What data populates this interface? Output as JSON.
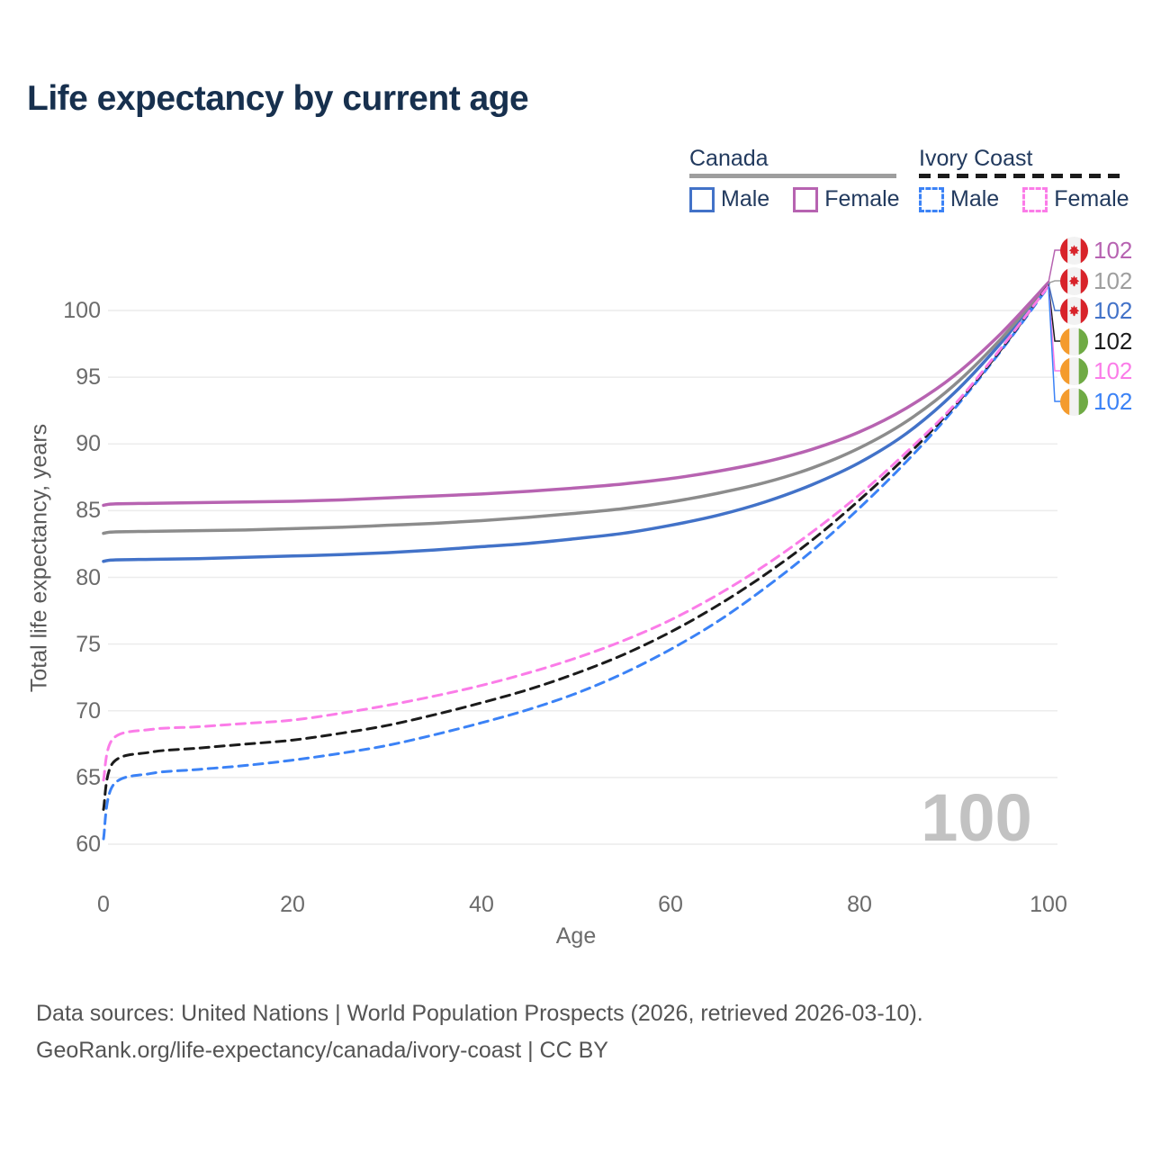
{
  "title": "Life expectancy by current age",
  "watermark": "100",
  "colors": {
    "title": "#17304e",
    "legend_text": "#223a5e",
    "axis_text": "#6b6b6b",
    "grid": "#ececec",
    "footer_text": "#545454",
    "watermark": "#c2c2c2",
    "canada_flag_red": "#d8232a",
    "ivory_flag_orange": "#f49b2d",
    "ivory_flag_green": "#6faa44"
  },
  "legend": {
    "groups": [
      {
        "label": "Canada",
        "line_style": "solid",
        "underline_color": "#9e9e9e",
        "items": [
          {
            "label": "Male",
            "color": "#4272c8"
          },
          {
            "label": "Female",
            "color": "#b763b1"
          }
        ]
      },
      {
        "label": "Ivory Coast",
        "line_style": "dashed",
        "underline_color": "#1b1b1b",
        "items": [
          {
            "label": "Male",
            "color": "#3b82f6"
          },
          {
            "label": "Female",
            "color": "#fb7ce8"
          }
        ]
      }
    ]
  },
  "end_labels": [
    {
      "value": "102",
      "flag": "canada",
      "series": "canada-female",
      "color": "#b763b1"
    },
    {
      "value": "102",
      "flag": "canada",
      "series": "canada-both",
      "color": "#9e9e9e"
    },
    {
      "value": "102",
      "flag": "canada",
      "series": "canada-male",
      "color": "#4272c8"
    },
    {
      "value": "102",
      "flag": "ivory-coast",
      "series": "ivory-both",
      "color": "#1b1b1b"
    },
    {
      "value": "102",
      "flag": "ivory-coast",
      "series": "ivory-female",
      "color": "#fb7ce8"
    },
    {
      "value": "102",
      "flag": "ivory-coast",
      "series": "ivory-male",
      "color": "#3b82f6"
    }
  ],
  "chart_data": {
    "type": "line",
    "title": "Life expectancy by current age",
    "xlabel": "Age",
    "ylabel": "Total life expectancy, years",
    "xlim": [
      0,
      100
    ],
    "ylim": [
      60,
      102.5
    ],
    "xticks": [
      0,
      20,
      40,
      60,
      80,
      100
    ],
    "yticks": [
      60,
      65,
      70,
      75,
      80,
      85,
      90,
      95,
      100
    ],
    "grid": "horizontal",
    "legend_position": "top-right",
    "x": [
      0,
      1,
      5,
      10,
      15,
      20,
      25,
      30,
      35,
      40,
      45,
      50,
      55,
      60,
      65,
      70,
      75,
      80,
      85,
      90,
      95,
      100
    ],
    "series": [
      {
        "id": "canada-male",
        "name": "Canada Male",
        "country": "Canada",
        "sex": "Male",
        "color": "#4272c8",
        "dash": null,
        "width": 3.5,
        "values": [
          81.2,
          81.3,
          81.35,
          81.4,
          81.5,
          81.6,
          81.7,
          81.85,
          82.05,
          82.3,
          82.55,
          82.9,
          83.3,
          83.9,
          84.65,
          85.65,
          86.95,
          88.6,
          90.8,
          93.8,
          97.6,
          102.0
        ]
      },
      {
        "id": "canada-both",
        "name": "Canada Both sexes",
        "country": "Canada",
        "sex": "Both",
        "color": "#8c8c8c",
        "dash": null,
        "width": 3.5,
        "values": [
          83.3,
          83.4,
          83.45,
          83.5,
          83.55,
          83.65,
          83.75,
          83.9,
          84.05,
          84.25,
          84.5,
          84.8,
          85.15,
          85.65,
          86.3,
          87.1,
          88.2,
          89.7,
          91.7,
          94.4,
          97.9,
          102.05
        ]
      },
      {
        "id": "canada-female",
        "name": "Canada Female",
        "country": "Canada",
        "sex": "Female",
        "color": "#b763b1",
        "dash": null,
        "width": 3.5,
        "values": [
          85.4,
          85.5,
          85.55,
          85.6,
          85.65,
          85.7,
          85.8,
          85.95,
          86.1,
          86.25,
          86.45,
          86.7,
          87.0,
          87.4,
          87.95,
          88.65,
          89.6,
          90.9,
          92.7,
          95.1,
          98.3,
          102.1
        ]
      },
      {
        "id": "ivory-male",
        "name": "Ivory Coast Male",
        "country": "Ivory Coast",
        "sex": "Male",
        "color": "#3b82f6",
        "dash": "10 7",
        "width": 3,
        "values": [
          60.4,
          64.4,
          65.3,
          65.6,
          65.9,
          66.3,
          66.8,
          67.4,
          68.2,
          69.1,
          70.1,
          71.3,
          72.8,
          74.6,
          76.7,
          79.2,
          82.0,
          85.2,
          88.7,
          92.6,
          97.0,
          101.8
        ]
      },
      {
        "id": "ivory-both",
        "name": "Ivory Coast Both sexes",
        "country": "Ivory Coast",
        "sex": "Both",
        "color": "#1b1b1b",
        "dash": "10 7",
        "width": 3,
        "values": [
          62.6,
          66.1,
          66.9,
          67.2,
          67.5,
          67.8,
          68.3,
          68.9,
          69.7,
          70.6,
          71.6,
          72.8,
          74.2,
          75.9,
          77.9,
          80.2,
          82.8,
          85.8,
          89.1,
          92.8,
          97.1,
          101.9
        ]
      },
      {
        "id": "ivory-female",
        "name": "Ivory Coast Female",
        "country": "Ivory Coast",
        "sex": "Female",
        "color": "#fb7ce8",
        "dash": "10 7",
        "width": 3,
        "values": [
          64.8,
          67.9,
          68.6,
          68.8,
          69.05,
          69.3,
          69.8,
          70.4,
          71.1,
          71.9,
          72.85,
          73.95,
          75.25,
          76.8,
          78.7,
          80.9,
          83.4,
          86.2,
          89.4,
          92.9,
          97.2,
          101.85
        ]
      }
    ]
  },
  "footer": {
    "line1": "Data sources: United Nations | World Population Prospects (2026, retrieved 2026-03-10).",
    "line2": "GeoRank.org/life-expectancy/canada/ivory-coast | CC BY"
  }
}
